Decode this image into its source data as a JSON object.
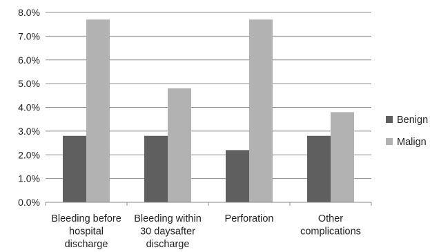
{
  "chart_data": {
    "type": "bar",
    "title": "",
    "xlabel": "",
    "ylabel": "",
    "categories": [
      [
        "Bleeding before",
        "hospital",
        "discharge"
      ],
      [
        "Bleeding within",
        "30 daysafter",
        "discharge"
      ],
      [
        "Perforation"
      ],
      [
        "Other",
        "complications"
      ]
    ],
    "series": [
      {
        "name": "Benign",
        "color": "#5f5f5f",
        "values": [
          2.8,
          2.8,
          2.2,
          2.8
        ]
      },
      {
        "name": "Malign",
        "color": "#b2b2b2",
        "values": [
          7.7,
          4.8,
          7.7,
          3.8
        ]
      }
    ],
    "ylim": [
      0,
      8
    ],
    "yticks": [
      "0.0%",
      "1.0%",
      "2.0%",
      "3.0%",
      "4.0%",
      "5.0%",
      "6.0%",
      "7.0%",
      "8.0%"
    ],
    "grid": true,
    "legend_position": "right"
  }
}
